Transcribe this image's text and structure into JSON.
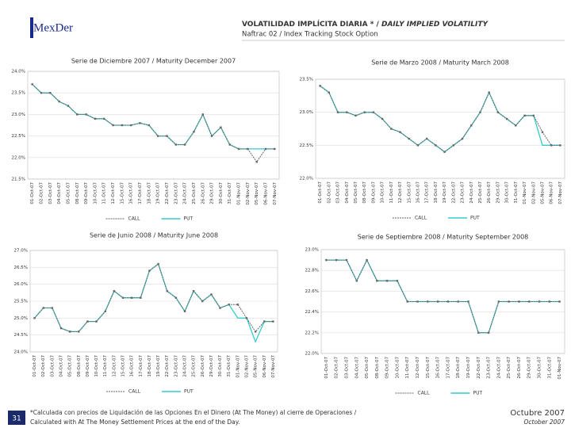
{
  "header": {
    "logo": "MexDer",
    "title": "VOLATILIDAD IMPLÍCITA DIARIA * / ",
    "title_en": "DAILY IMPLIED VOLATILITY",
    "subtitle": "Naftrac 02 / Index Tracking Stock Option"
  },
  "footer": {
    "page": "31",
    "note": "*Calculada con precios de Liquidación de las Opciones En el Dinero (At The Money) al cierre de Operaciones /",
    "note_en": "Calculated with At The Money Settlement Prices at the end of the Day.",
    "date": "Octubre 2007",
    "date_en": "October 2007"
  },
  "chart_data": [
    {
      "type": "line",
      "title": "Serie de Diciembre 2007 / Maturity December 2007",
      "categories": [
        "01-Oct-07",
        "02-Oct-07",
        "03-Oct-07",
        "04-Oct-07",
        "05-Oct-07",
        "08-Oct-07",
        "09-Oct-07",
        "10-Oct-07",
        "11-Oct-07",
        "12-Oct-07",
        "15-Oct-07",
        "16-Oct-07",
        "17-Oct-07",
        "18-Oct-07",
        "19-Oct-07",
        "22-Oct-07",
        "23-Oct-07",
        "24-Oct-07",
        "25-Oct-07",
        "26-Oct-07",
        "29-Oct-07",
        "30-Oct-07",
        "31-Oct-07",
        "01-Nov-07",
        "02-Nov-07",
        "05-Nov-07",
        "06-Nov-07",
        "07-Nov-07"
      ],
      "series": [
        {
          "name": "CALL",
          "color": "#666666",
          "values": [
            23.7,
            23.5,
            23.5,
            23.3,
            23.2,
            23.0,
            23.0,
            22.9,
            22.9,
            22.75,
            22.75,
            22.75,
            22.8,
            22.75,
            22.5,
            22.5,
            22.3,
            22.3,
            22.6,
            23.0,
            22.5,
            22.7,
            22.3,
            22.2,
            22.2,
            21.9,
            22.2,
            22.2
          ]
        },
        {
          "name": "PUT",
          "color": "#33cccc",
          "values": [
            23.7,
            23.5,
            23.5,
            23.3,
            23.2,
            23.0,
            23.0,
            22.9,
            22.9,
            22.75,
            22.75,
            22.75,
            22.8,
            22.75,
            22.5,
            22.5,
            22.3,
            22.3,
            22.6,
            23.0,
            22.5,
            22.7,
            22.3,
            22.2,
            22.2,
            22.2,
            22.2,
            22.2
          ]
        }
      ],
      "ylim": [
        21.5,
        24.0
      ],
      "yticks": [
        {
          "value": 24.0,
          "label": "24.0%"
        },
        {
          "value": 23.5,
          "label": "23.5%"
        },
        {
          "value": 23.0,
          "label": "23.0%"
        },
        {
          "value": 22.5,
          "label": "22.5%"
        },
        {
          "value": 22.0,
          "label": "22.0%"
        },
        {
          "value": 21.5,
          "label": "21.5%"
        }
      ],
      "grid": true,
      "legend": "bottom"
    },
    {
      "type": "line",
      "title": "Serie de Marzo 2008 / Maturity March 2008",
      "categories": [
        "01-Oct-07",
        "02-Oct-07",
        "03-Oct-07",
        "04-Oct-07",
        "05-Oct-07",
        "08-Oct-07",
        "09-Oct-07",
        "10-Oct-07",
        "11-Oct-07",
        "12-Oct-07",
        "15-Oct-07",
        "16-Oct-07",
        "17-Oct-07",
        "18-Oct-07",
        "19-Oct-07",
        "22-Oct-07",
        "23-Oct-07",
        "24-Oct-07",
        "25-Oct-07",
        "26-Oct-07",
        "29-Oct-07",
        "30-Oct-07",
        "31-Oct-07",
        "01-Nov-07",
        "02-Nov-07",
        "05-Nov-07",
        "06-Nov-07",
        "07-Nov-07"
      ],
      "series": [
        {
          "name": "CALL",
          "color": "#666666",
          "values": [
            23.4,
            23.3,
            23.0,
            23.0,
            22.95,
            23.0,
            23.0,
            22.9,
            22.75,
            22.7,
            22.6,
            22.5,
            22.6,
            22.5,
            22.4,
            22.5,
            22.6,
            22.8,
            23.0,
            23.3,
            23.0,
            22.9,
            22.8,
            22.95,
            22.95,
            22.7,
            22.5,
            22.5
          ]
        },
        {
          "name": "PUT",
          "color": "#33cccc",
          "values": [
            23.4,
            23.3,
            23.0,
            23.0,
            22.95,
            23.0,
            23.0,
            22.9,
            22.75,
            22.7,
            22.6,
            22.5,
            22.6,
            22.5,
            22.4,
            22.5,
            22.6,
            22.8,
            23.0,
            23.3,
            23.0,
            22.9,
            22.8,
            22.95,
            22.95,
            22.5,
            22.5,
            22.5
          ]
        }
      ],
      "ylim": [
        22.0,
        23.5
      ],
      "yticks": [
        {
          "value": 23.5,
          "label": "23.5%"
        },
        {
          "value": 23.0,
          "label": "23.0%"
        },
        {
          "value": 22.5,
          "label": "22.5%"
        },
        {
          "value": 22.0,
          "label": "22.0%"
        }
      ],
      "grid": true,
      "legend": "bottom"
    },
    {
      "type": "line",
      "title": "Serie de Junio 2008 / Maturity June 2008",
      "categories": [
        "01-Oct-07",
        "02-Oct-07",
        "03-Oct-07",
        "04-Oct-07",
        "05-Oct-07",
        "08-Oct-07",
        "09-Oct-07",
        "10-Oct-07",
        "11-Oct-07",
        "12-Oct-07",
        "15-Oct-07",
        "16-Oct-07",
        "17-Oct-07",
        "18-Oct-07",
        "19-Oct-07",
        "22-Oct-07",
        "23-Oct-07",
        "24-Oct-07",
        "25-Oct-07",
        "26-Oct-07",
        "29-Oct-07",
        "30-Oct-07",
        "31-Oct-07",
        "01-Nov-07",
        "02-Nov-07",
        "05-Nov-07",
        "06-Nov-07",
        "07-Nov-07"
      ],
      "series": [
        {
          "name": "CALL",
          "color": "#666666",
          "values": [
            25.0,
            25.3,
            25.3,
            24.7,
            24.6,
            24.6,
            24.9,
            24.9,
            25.2,
            25.8,
            25.6,
            25.6,
            25.6,
            26.4,
            26.6,
            25.8,
            25.6,
            25.2,
            25.8,
            25.5,
            25.7,
            25.3,
            25.4,
            25.4,
            25.0,
            24.6,
            24.9,
            24.9
          ]
        },
        {
          "name": "PUT",
          "color": "#33cccc",
          "values": [
            25.0,
            25.3,
            25.3,
            24.7,
            24.6,
            24.6,
            24.9,
            24.9,
            25.2,
            25.8,
            25.6,
            25.6,
            25.6,
            26.4,
            26.6,
            25.8,
            25.6,
            25.2,
            25.8,
            25.5,
            25.7,
            25.3,
            25.4,
            25.0,
            25.0,
            24.3,
            24.9,
            24.9
          ]
        }
      ],
      "ylim": [
        24.0,
        27.0
      ],
      "yticks": [
        {
          "value": 27.0,
          "label": "27.0%"
        },
        {
          "value": 26.5,
          "label": "26.5%"
        },
        {
          "value": 26.0,
          "label": "26.0%"
        },
        {
          "value": 25.5,
          "label": "25.5%"
        },
        {
          "value": 25.0,
          "label": "25.0%"
        },
        {
          "value": 24.5,
          "label": "24.5%"
        },
        {
          "value": 24.0,
          "label": "24.0%"
        }
      ],
      "grid": true,
      "legend": "bottom"
    },
    {
      "type": "line",
      "title": "Serie de Septiembre 2008 / Maturity September 2008",
      "categories": [
        "01-Oct-07",
        "02-Oct-07",
        "03-Oct-07",
        "04-Oct-07",
        "05-Oct-07",
        "08-Oct-07",
        "09-Oct-07",
        "10-Oct-07",
        "11-Oct-07",
        "12-Oct-07",
        "15-Oct-07",
        "16-Oct-07",
        "17-Oct-07",
        "18-Oct-07",
        "19-Oct-07",
        "22-Oct-07",
        "23-Oct-07",
        "24-Oct-07",
        "25-Oct-07",
        "26-Oct-07",
        "29-Oct-07",
        "30-Oct-07",
        "31-Oct-07",
        "01-Nov-07"
      ],
      "series": [
        {
          "name": "CALL",
          "color": "#666666",
          "values": [
            22.9,
            22.9,
            22.9,
            22.7,
            22.9,
            22.7,
            22.7,
            22.7,
            22.5,
            22.5,
            22.5,
            22.5,
            22.5,
            22.5,
            22.5,
            22.2,
            22.2,
            22.5,
            22.5,
            22.5,
            22.5,
            22.5,
            22.5,
            22.5
          ]
        },
        {
          "name": "PUT",
          "color": "#33cccc",
          "values": [
            22.9,
            22.9,
            22.9,
            22.7,
            22.9,
            22.7,
            22.7,
            22.7,
            22.5,
            22.5,
            22.5,
            22.5,
            22.5,
            22.5,
            22.5,
            22.2,
            22.2,
            22.5,
            22.5,
            22.5,
            22.5,
            22.5,
            22.5,
            22.5
          ]
        }
      ],
      "ylim": [
        22.0,
        23.0
      ],
      "yticks": [
        {
          "value": 23.0,
          "label": "23.0%"
        },
        {
          "value": 22.8,
          "label": "22.8%"
        },
        {
          "value": 22.6,
          "label": "22.6%"
        },
        {
          "value": 22.4,
          "label": "22.4%"
        },
        {
          "value": 22.2,
          "label": "22.2%"
        },
        {
          "value": 22.0,
          "label": "22.0%"
        }
      ],
      "grid": true,
      "legend": "bottom"
    }
  ]
}
